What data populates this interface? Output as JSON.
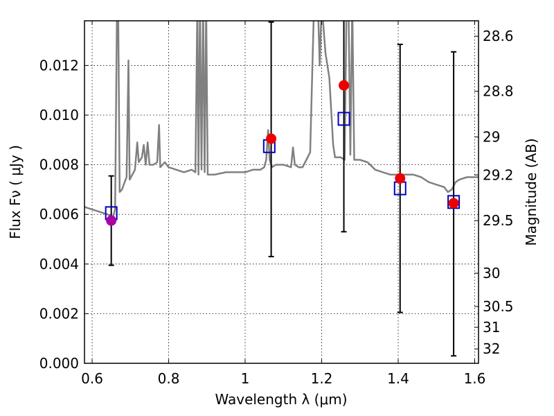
{
  "chart_data": {
    "type": "scatter",
    "xlabel": "Wavelength  λ (μm)",
    "ylabel": "Flux  Fν  ( μJy )",
    "right_ylabel": "Magnitude (AB)",
    "xlim": [
      0.58,
      1.61
    ],
    "ylim": [
      0.0,
      0.0138
    ],
    "grid": true,
    "x_ticks": [
      {
        "value": 0.6,
        "label": "0.6"
      },
      {
        "value": 0.8,
        "label": "0.8"
      },
      {
        "value": 1.0,
        "label": "1"
      },
      {
        "value": 1.2,
        "label": "1.2"
      },
      {
        "value": 1.4,
        "label": "1.4"
      },
      {
        "value": 1.6,
        "label": "1.6"
      }
    ],
    "y_ticks": [
      {
        "value": 0.0,
        "label": "0.000"
      },
      {
        "value": 0.002,
        "label": "0.002"
      },
      {
        "value": 0.004,
        "label": "0.004"
      },
      {
        "value": 0.006,
        "label": "0.006"
      },
      {
        "value": 0.008,
        "label": "0.008"
      },
      {
        "value": 0.01,
        "label": "0.010"
      },
      {
        "value": 0.012,
        "label": "0.012"
      }
    ],
    "right_ticks": [
      {
        "flux": 0.01318,
        "label": "28.6"
      },
      {
        "flux": 0.01096,
        "label": "28.8"
      },
      {
        "flux": 0.00912,
        "label": "29"
      },
      {
        "flux": 0.00759,
        "label": "29.2"
      },
      {
        "flux": 0.00575,
        "label": "29.5"
      },
      {
        "flux": 0.00363,
        "label": "30"
      },
      {
        "flux": 0.00229,
        "label": "30.5"
      },
      {
        "flux": 0.00145,
        "label": "31"
      },
      {
        "flux": 0.00058,
        "label": "32"
      }
    ],
    "model_spectrum": {
      "color": "#808080",
      "points": [
        [
          0.58,
          0.0063
        ],
        [
          0.6,
          0.0062
        ],
        [
          0.62,
          0.0061
        ],
        [
          0.64,
          0.006
        ],
        [
          0.655,
          0.0059
        ],
        [
          0.66,
          0.0062
        ],
        [
          0.665,
          0.0145
        ],
        [
          0.668,
          0.0145
        ],
        [
          0.672,
          0.0069
        ],
        [
          0.678,
          0.007
        ],
        [
          0.685,
          0.0073
        ],
        [
          0.69,
          0.0075
        ],
        [
          0.695,
          0.0122
        ],
        [
          0.698,
          0.0074
        ],
        [
          0.705,
          0.0076
        ],
        [
          0.712,
          0.0078
        ],
        [
          0.718,
          0.0089
        ],
        [
          0.722,
          0.0081
        ],
        [
          0.73,
          0.0083
        ],
        [
          0.735,
          0.0088
        ],
        [
          0.74,
          0.008
        ],
        [
          0.745,
          0.0089
        ],
        [
          0.75,
          0.008
        ],
        [
          0.76,
          0.008
        ],
        [
          0.77,
          0.0081
        ],
        [
          0.775,
          0.0096
        ],
        [
          0.778,
          0.0079
        ],
        [
          0.79,
          0.0081
        ],
        [
          0.8,
          0.0079
        ],
        [
          0.82,
          0.0078
        ],
        [
          0.84,
          0.0077
        ],
        [
          0.86,
          0.0078
        ],
        [
          0.87,
          0.0077
        ],
        [
          0.875,
          0.0145
        ],
        [
          0.878,
          0.0076
        ],
        [
          0.882,
          0.0145
        ],
        [
          0.886,
          0.0078
        ],
        [
          0.89,
          0.0145
        ],
        [
          0.894,
          0.0077
        ],
        [
          0.898,
          0.0145
        ],
        [
          0.902,
          0.0076
        ],
        [
          0.92,
          0.0076
        ],
        [
          0.95,
          0.0077
        ],
        [
          0.98,
          0.0077
        ],
        [
          1.0,
          0.0077
        ],
        [
          1.02,
          0.0078
        ],
        [
          1.04,
          0.0078
        ],
        [
          1.05,
          0.0079
        ],
        [
          1.055,
          0.0082
        ],
        [
          1.06,
          0.0094
        ],
        [
          1.064,
          0.0082
        ],
        [
          1.07,
          0.0079
        ],
        [
          1.08,
          0.008
        ],
        [
          1.1,
          0.008
        ],
        [
          1.12,
          0.0079
        ],
        [
          1.125,
          0.0087
        ],
        [
          1.13,
          0.008
        ],
        [
          1.14,
          0.0079
        ],
        [
          1.15,
          0.0079
        ],
        [
          1.16,
          0.0082
        ],
        [
          1.17,
          0.0085
        ],
        [
          1.18,
          0.0145
        ],
        [
          1.19,
          0.0145
        ],
        [
          1.195,
          0.012
        ],
        [
          1.2,
          0.0145
        ],
        [
          1.21,
          0.0125
        ],
        [
          1.22,
          0.0115
        ],
        [
          1.23,
          0.0088
        ],
        [
          1.235,
          0.0083
        ],
        [
          1.24,
          0.0083
        ],
        [
          1.25,
          0.0083
        ],
        [
          1.26,
          0.0082
        ],
        [
          1.265,
          0.0145
        ],
        [
          1.27,
          0.0145
        ],
        [
          1.275,
          0.0084
        ],
        [
          1.28,
          0.0145
        ],
        [
          1.285,
          0.0082
        ],
        [
          1.3,
          0.0082
        ],
        [
          1.32,
          0.0081
        ],
        [
          1.34,
          0.0078
        ],
        [
          1.36,
          0.0077
        ],
        [
          1.38,
          0.0076
        ],
        [
          1.4,
          0.0076
        ],
        [
          1.42,
          0.0076
        ],
        [
          1.44,
          0.0076
        ],
        [
          1.46,
          0.0075
        ],
        [
          1.48,
          0.0073
        ],
        [
          1.5,
          0.0072
        ],
        [
          1.52,
          0.0071
        ],
        [
          1.53,
          0.0069
        ],
        [
          1.54,
          0.007
        ],
        [
          1.55,
          0.0073
        ],
        [
          1.56,
          0.0074
        ],
        [
          1.58,
          0.0075
        ],
        [
          1.6,
          0.0075
        ],
        [
          1.61,
          0.0075
        ]
      ]
    },
    "observed_points": [
      {
        "x": 0.65,
        "y": 0.00575,
        "yerr_low": 0.00395,
        "yerr_high": 0.00755,
        "color": "#aa00aa"
      },
      {
        "x": 1.068,
        "y": 0.00905,
        "yerr_low": 0.0043,
        "yerr_high": 0.01375,
        "color": "#ee0000"
      },
      {
        "x": 1.258,
        "y": 0.0112,
        "yerr_low": 0.0053,
        "yerr_high": 0.014,
        "color": "#ee0000"
      },
      {
        "x": 1.405,
        "y": 0.00745,
        "yerr_low": 0.00205,
        "yerr_high": 0.01285,
        "color": "#ee0000"
      },
      {
        "x": 1.545,
        "y": 0.00645,
        "yerr_low": 0.0003,
        "yerr_high": 0.01255,
        "color": "#ee0000"
      }
    ],
    "model_points": [
      {
        "x": 0.65,
        "y": 0.00605
      },
      {
        "x": 1.063,
        "y": 0.00875
      },
      {
        "x": 1.258,
        "y": 0.00985
      },
      {
        "x": 1.405,
        "y": 0.00705
      },
      {
        "x": 1.545,
        "y": 0.0065
      }
    ],
    "model_point_color": "#0000bb"
  }
}
